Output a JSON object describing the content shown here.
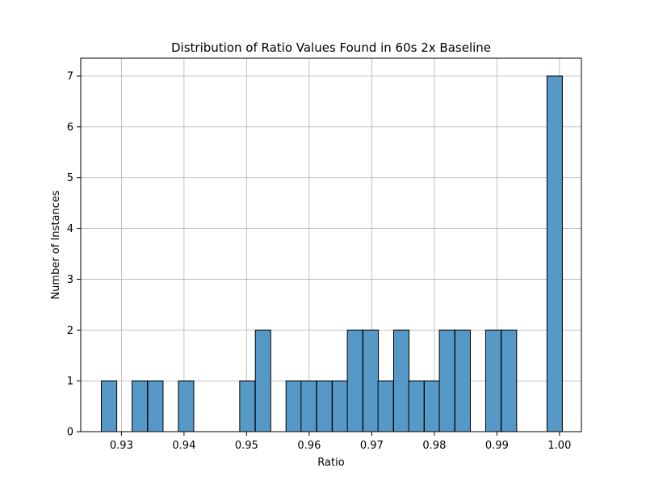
{
  "chart_data": {
    "type": "bar",
    "title": "Distribution of Ratio Values Found in 60s 2x Baseline",
    "xlabel": "Ratio",
    "ylabel": "Number of Instances",
    "xlim": [
      0.9235,
      1.0035
    ],
    "ylim": [
      0,
      7.35
    ],
    "grid": true,
    "bar_color": "#5799c6",
    "edge_color": "#000000",
    "bin_width": 0.002456,
    "x_ticks": [
      0.93,
      0.94,
      0.95,
      0.96,
      0.97,
      0.98,
      0.99,
      1.0
    ],
    "x_tick_labels": [
      "0.93",
      "0.94",
      "0.95",
      "0.96",
      "0.97",
      "0.98",
      "0.99",
      "1.00"
    ],
    "y_ticks": [
      0,
      1,
      2,
      3,
      4,
      5,
      6,
      7
    ],
    "y_tick_labels": [
      "0",
      "1",
      "2",
      "3",
      "4",
      "5",
      "6",
      "7"
    ],
    "bins": [
      {
        "start": 0.9268,
        "count": 1
      },
      {
        "start": 0.9317,
        "count": 1
      },
      {
        "start": 0.9342,
        "count": 1
      },
      {
        "start": 0.9391,
        "count": 1
      },
      {
        "start": 0.9489,
        "count": 1
      },
      {
        "start": 0.9514,
        "count": 2
      },
      {
        "start": 0.9563,
        "count": 1
      },
      {
        "start": 0.9587,
        "count": 1
      },
      {
        "start": 0.9612,
        "count": 1
      },
      {
        "start": 0.9637,
        "count": 1
      },
      {
        "start": 0.9661,
        "count": 2
      },
      {
        "start": 0.9686,
        "count": 2
      },
      {
        "start": 0.971,
        "count": 1
      },
      {
        "start": 0.9735,
        "count": 2
      },
      {
        "start": 0.9759,
        "count": 1
      },
      {
        "start": 0.9784,
        "count": 1
      },
      {
        "start": 0.9808,
        "count": 2
      },
      {
        "start": 0.9833,
        "count": 2
      },
      {
        "start": 0.9882,
        "count": 2
      },
      {
        "start": 0.9907,
        "count": 2
      },
      {
        "start": 0.998,
        "count": 7
      }
    ]
  }
}
